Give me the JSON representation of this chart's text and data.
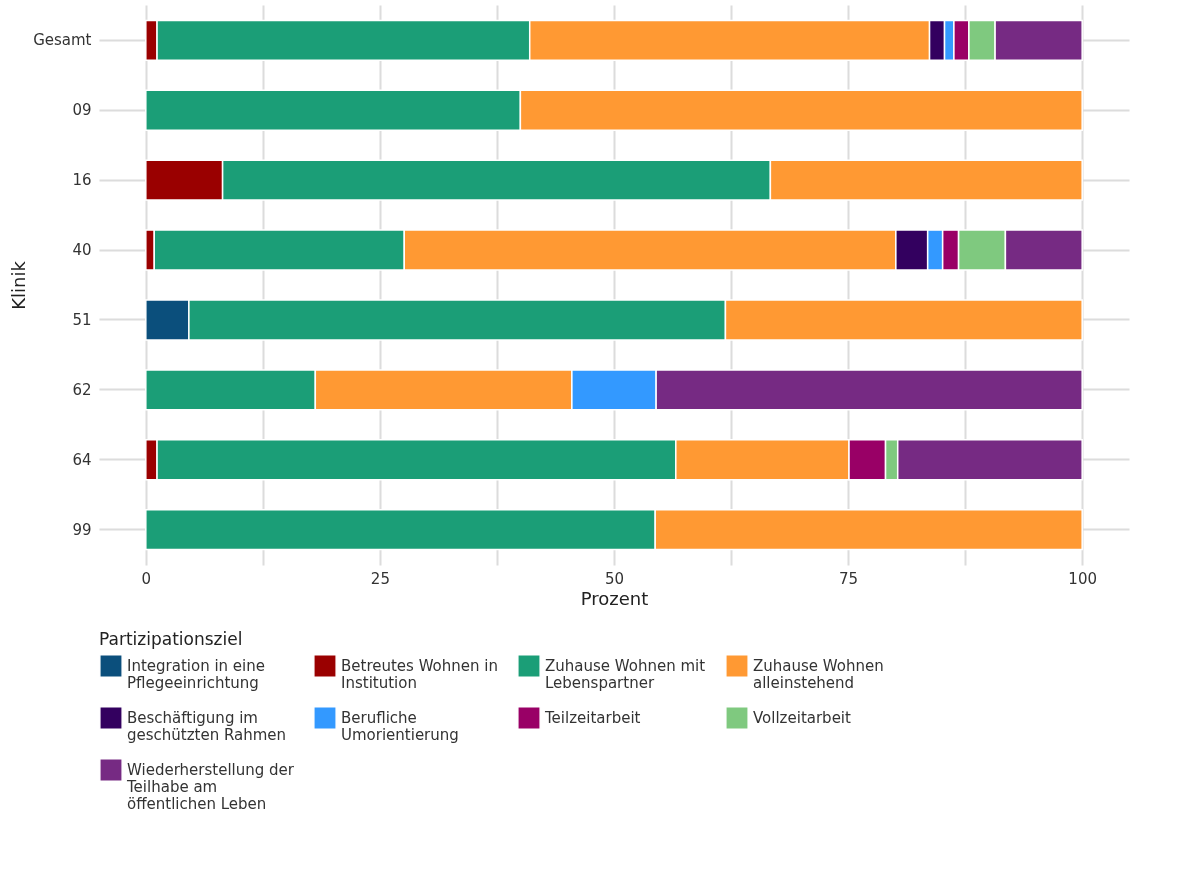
{
  "chart_data": {
    "type": "bar",
    "orientation": "horizontal",
    "stacked": true,
    "xlabel": "Prozent",
    "ylabel": "Klinik",
    "legend_title": "Partizipationsziel",
    "legend": "bottom",
    "grid": true,
    "categories": [
      "Gesamt",
      "09",
      "16",
      "40",
      "51",
      "62",
      "64",
      "99"
    ],
    "xlim": [
      -5,
      105
    ],
    "xticks": [
      0,
      {
        "value": 12.5,
        "label": null
      },
      25,
      {
        "value": 37.5,
        "label": null
      },
      50,
      {
        "value": 62.5,
        "label": null
      },
      75,
      {
        "value": 87.5,
        "label": null
      },
      100
    ],
    "series": [
      {
        "name": "Integration in eine Pflegeeinrichtung",
        "color": "#0b4f7c",
        "values": [
          null,
          null,
          null,
          null,
          4.6,
          null,
          null,
          null
        ]
      },
      {
        "name": "Betreutes Wohnen in Institution",
        "color": "#9a0000",
        "values": [
          1.2,
          null,
          8.2,
          0.9,
          null,
          null,
          1.2,
          null
        ]
      },
      {
        "name": "Zuhause Wohnen mit Lebenspartner",
        "color": "#1b9e77",
        "values": [
          39.8,
          40.0,
          58.5,
          26.7,
          57.3,
          18.1,
          55.4,
          54.4
        ]
      },
      {
        "name": "Zuhause Wohnen alleinstehend",
        "color": "#ff9933",
        "values": [
          42.7,
          60.0,
          33.3,
          52.5,
          38.1,
          27.4,
          18.5,
          45.6
        ]
      },
      {
        "name": "Beschäftigung im geschützten Rahmen",
        "color": "#33005f",
        "values": [
          1.6,
          null,
          null,
          3.4,
          null,
          null,
          null,
          null
        ]
      },
      {
        "name": "Berufliche Umorientierung",
        "color": "#3399ff",
        "values": [
          1.0,
          null,
          null,
          1.6,
          null,
          9.0,
          null,
          null
        ]
      },
      {
        "name": "Teilzeitarbeit",
        "color": "#990066",
        "values": [
          1.6,
          null,
          null,
          1.7,
          null,
          null,
          3.9,
          null
        ]
      },
      {
        "name": "Vollzeitarbeit",
        "color": "#7fc97f",
        "values": [
          2.8,
          null,
          null,
          5.0,
          null,
          null,
          1.3,
          null
        ]
      },
      {
        "name": "Wiederherstellung der Teilhabe am öffentlichen Leben",
        "color": "#762a83",
        "values": [
          9.3,
          null,
          null,
          8.2,
          null,
          45.5,
          19.7,
          null
        ]
      }
    ]
  }
}
